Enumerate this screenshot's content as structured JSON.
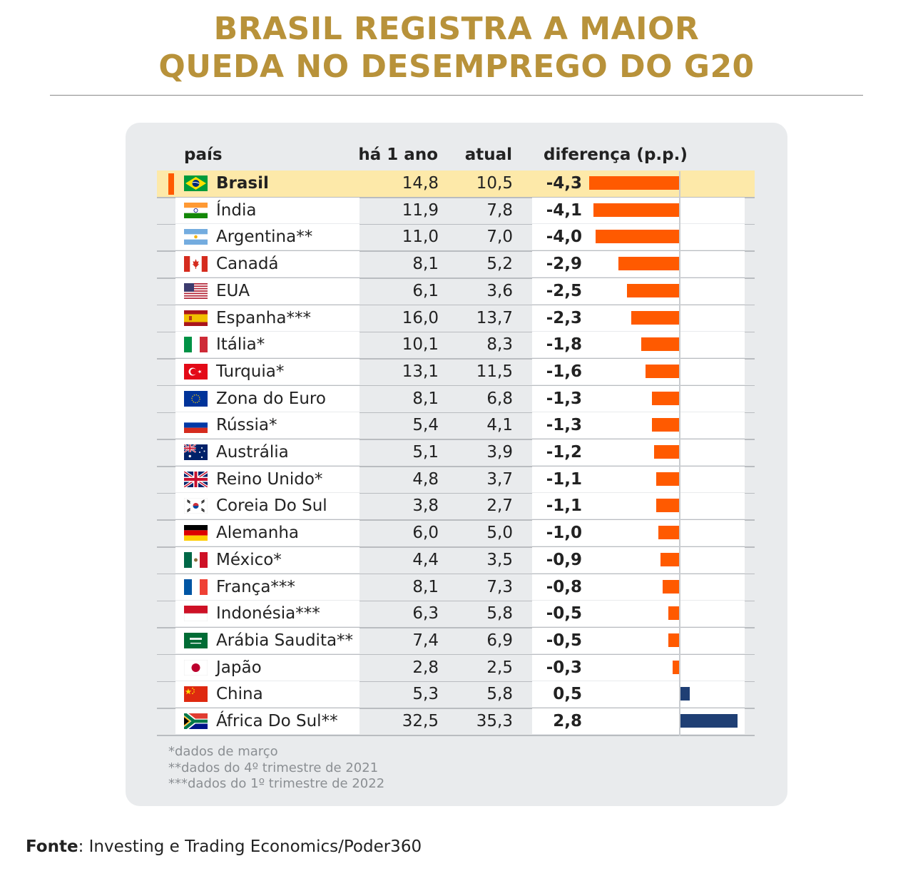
{
  "title_line1": "BRASIL REGISTRA A MAIOR",
  "title_line2": "QUEDA NO DESEMPREGO DO G20",
  "headers": {
    "country": "país",
    "year_ago": "há 1 ano",
    "current": "atual",
    "difference": "diferença (p.p.)"
  },
  "colors": {
    "title": "#b8923a",
    "negative": "#ff5a00",
    "positive": "#1f3f74",
    "highlight": "#fde9a9"
  },
  "chart_data": {
    "type": "bar",
    "orientation": "horizontal",
    "columns": [
      "país",
      "há 1 ano",
      "atual",
      "diferença (p.p.)"
    ],
    "categories": [
      "Brasil",
      "Índia",
      "Argentina**",
      "Canadá",
      "EUA",
      "Espanha***",
      "Itália*",
      "Turquia*",
      "Zona do Euro",
      "Rússia*",
      "Austrália",
      "Reino Unido*",
      "Coreia Do Sul",
      "Alemanha",
      "México*",
      "França***",
      "Indonésia***",
      "Arábia Saudita**",
      "Japão",
      "China",
      "África Do Sul**"
    ],
    "rows": [
      {
        "country": "Brasil",
        "flag": "br-flag",
        "year_ago": "14,8",
        "current": "10,5",
        "diff_label": "-4,3",
        "diff": -4.3,
        "highlight": true
      },
      {
        "country": "Índia",
        "flag": "in-flag",
        "year_ago": "11,9",
        "current": "7,8",
        "diff_label": "-4,1",
        "diff": -4.1
      },
      {
        "country": "Argentina**",
        "flag": "ar-flag",
        "year_ago": "11,0",
        "current": "7,0",
        "diff_label": "-4,0",
        "diff": -4.0
      },
      {
        "country": "Canadá",
        "flag": "ca-flag",
        "year_ago": "8,1",
        "current": "5,2",
        "diff_label": "-2,9",
        "diff": -2.9
      },
      {
        "country": "EUA",
        "flag": "us-flag",
        "year_ago": "6,1",
        "current": "3,6",
        "diff_label": "-2,5",
        "diff": -2.5
      },
      {
        "country": "Espanha***",
        "flag": "es-flag",
        "year_ago": "16,0",
        "current": "13,7",
        "diff_label": "-2,3",
        "diff": -2.3
      },
      {
        "country": "Itália*",
        "flag": "it-flag",
        "year_ago": "10,1",
        "current": "8,3",
        "diff_label": "-1,8",
        "diff": -1.8
      },
      {
        "country": "Turquia*",
        "flag": "tr-flag",
        "year_ago": "13,1",
        "current": "11,5",
        "diff_label": "-1,6",
        "diff": -1.6
      },
      {
        "country": "Zona do Euro",
        "flag": "eu-flag",
        "year_ago": "8,1",
        "current": "6,8",
        "diff_label": "-1,3",
        "diff": -1.3
      },
      {
        "country": "Rússia*",
        "flag": "ru-flag",
        "year_ago": "5,4",
        "current": "4,1",
        "diff_label": "-1,3",
        "diff": -1.3
      },
      {
        "country": "Austrália",
        "flag": "au-flag",
        "year_ago": "5,1",
        "current": "3,9",
        "diff_label": "-1,2",
        "diff": -1.2
      },
      {
        "country": "Reino Unido*",
        "flag": "gb-flag",
        "year_ago": "4,8",
        "current": "3,7",
        "diff_label": "-1,1",
        "diff": -1.1
      },
      {
        "country": "Coreia Do Sul",
        "flag": "kr-flag",
        "year_ago": "3,8",
        "current": "2,7",
        "diff_label": "-1,1",
        "diff": -1.1
      },
      {
        "country": "Alemanha",
        "flag": "de-flag",
        "year_ago": "6,0",
        "current": "5,0",
        "diff_label": "-1,0",
        "diff": -1.0
      },
      {
        "country": "México*",
        "flag": "mx-flag",
        "year_ago": "4,4",
        "current": "3,5",
        "diff_label": "-0,9",
        "diff": -0.9
      },
      {
        "country": "França***",
        "flag": "fr-flag",
        "year_ago": "8,1",
        "current": "7,3",
        "diff_label": "-0,8",
        "diff": -0.8
      },
      {
        "country": "Indonésia***",
        "flag": "id-flag",
        "year_ago": "6,3",
        "current": "5,8",
        "diff_label": "-0,5",
        "diff": -0.5
      },
      {
        "country": "Arábia Saudita**",
        "flag": "sa-flag",
        "year_ago": "7,4",
        "current": "6,9",
        "diff_label": "-0,5",
        "diff": -0.5
      },
      {
        "country": "Japão",
        "flag": "jp-flag",
        "year_ago": "2,8",
        "current": "2,5",
        "diff_label": "-0,3",
        "diff": -0.3
      },
      {
        "country": "China",
        "flag": "cn-flag",
        "year_ago": "5,3",
        "current": "5,8",
        "diff_label": "0,5",
        "diff": 0.5
      },
      {
        "country": "África Do Sul**",
        "flag": "za-flag",
        "year_ago": "32,5",
        "current": "35,3",
        "diff_label": "2,8",
        "diff": 2.8
      }
    ]
  },
  "notes": [
    "*dados de março",
    "**dados do 4º trimestre de 2021",
    "***dados do 1º trimestre de 2022"
  ],
  "source": {
    "label": "Fonte",
    "text": ": Investing e Trading Economics/Poder360"
  }
}
